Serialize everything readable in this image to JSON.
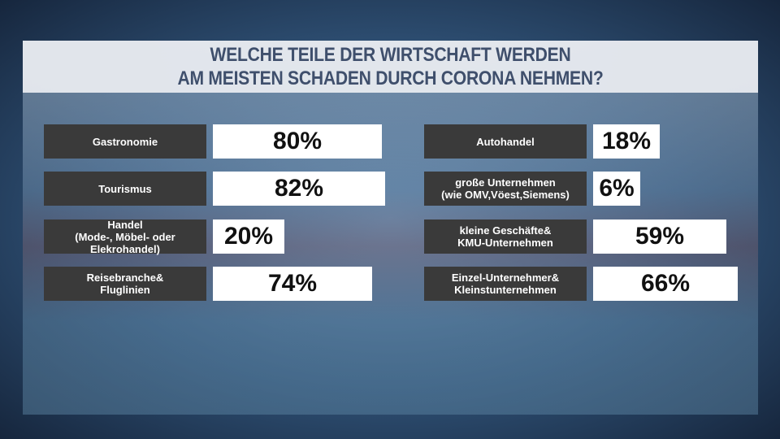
{
  "title_lines": [
    "WELCHE TEILE DER WIRTSCHAFT WERDEN",
    "AM MEISTEN SCHADEN DURCH CORONA NEHMEN?"
  ],
  "chart_data": [
    {
      "type": "bar",
      "orientation": "horizontal",
      "categories": [
        "Gastronomie",
        "Tourismus",
        "Handel\n(Mode-, Möbel- oder Elekrohandel)",
        "Reisebranche&\nFluglinien"
      ],
      "values": [
        80,
        82,
        20,
        74
      ],
      "value_labels": [
        "80%",
        "82%",
        "20%",
        "74%"
      ],
      "label_color": "#3a3a3a",
      "color": "#ffffff"
    },
    {
      "type": "bar",
      "orientation": "horizontal",
      "categories": [
        "Autohandel",
        "große Unternehmen\n(wie OMV,Vöest,Siemens)",
        "kleine Geschäfte&\nKMU-Unternehmen",
        "Einzel-Unternehmer&\nKleinstunternehmen"
      ],
      "values": [
        18,
        6,
        59,
        66
      ],
      "value_labels": [
        "18%",
        "6%",
        "59%",
        "66%"
      ],
      "label_color": "#3a3a3a",
      "color": "#ffffff"
    }
  ]
}
